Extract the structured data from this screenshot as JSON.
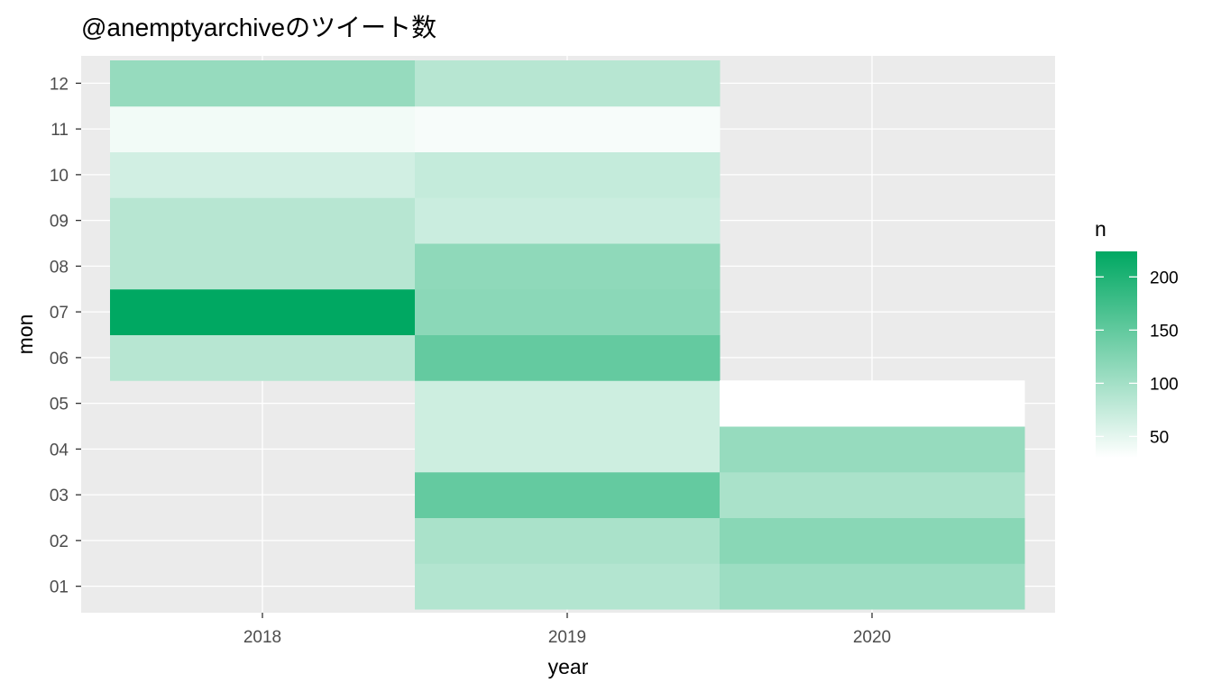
{
  "chart_data": {
    "type": "heatmap",
    "title": "@anemptyarchiveのツイート数",
    "xlabel": "year",
    "ylabel": "mon",
    "x_categories": [
      "2018",
      "2019",
      "2020"
    ],
    "y_categories": [
      "01",
      "02",
      "03",
      "04",
      "05",
      "06",
      "07",
      "08",
      "09",
      "10",
      "11",
      "12"
    ],
    "cells": [
      {
        "x": "2018",
        "y": "06",
        "n": 85
      },
      {
        "x": "2018",
        "y": "07",
        "n": 224
      },
      {
        "x": "2018",
        "y": "08",
        "n": 85
      },
      {
        "x": "2018",
        "y": "09",
        "n": 85
      },
      {
        "x": "2018",
        "y": "10",
        "n": 65
      },
      {
        "x": "2018",
        "y": "11",
        "n": 40
      },
      {
        "x": "2018",
        "y": "12",
        "n": 110
      },
      {
        "x": "2019",
        "y": "01",
        "n": 88
      },
      {
        "x": "2019",
        "y": "02",
        "n": 95
      },
      {
        "x": "2019",
        "y": "03",
        "n": 148
      },
      {
        "x": "2019",
        "y": "04",
        "n": 68
      },
      {
        "x": "2019",
        "y": "05",
        "n": 68
      },
      {
        "x": "2019",
        "y": "06",
        "n": 148
      },
      {
        "x": "2019",
        "y": "07",
        "n": 118
      },
      {
        "x": "2019",
        "y": "08",
        "n": 115
      },
      {
        "x": "2019",
        "y": "09",
        "n": 70
      },
      {
        "x": "2019",
        "y": "10",
        "n": 75
      },
      {
        "x": "2019",
        "y": "11",
        "n": 36
      },
      {
        "x": "2019",
        "y": "12",
        "n": 85
      },
      {
        "x": "2020",
        "y": "01",
        "n": 105
      },
      {
        "x": "2020",
        "y": "02",
        "n": 120
      },
      {
        "x": "2020",
        "y": "03",
        "n": 95
      },
      {
        "x": "2020",
        "y": "04",
        "n": 110
      },
      {
        "x": "2020",
        "y": "05",
        "n": 30
      }
    ],
    "legend": {
      "title": "n",
      "ticks": [
        50,
        100,
        150,
        200
      ],
      "range": [
        30,
        224
      ],
      "position": "right"
    },
    "colors": {
      "low": "#ffffff",
      "high": "#00a862",
      "panel_background": "#ebebeb",
      "grid": "#ffffff"
    },
    "grid": true
  }
}
